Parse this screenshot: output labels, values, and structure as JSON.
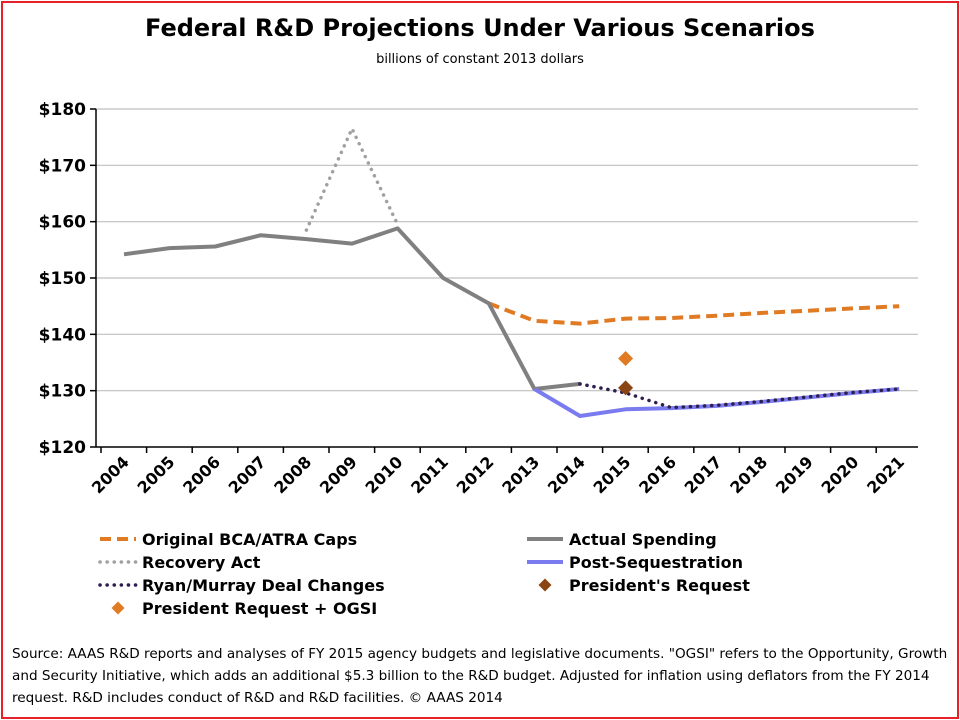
{
  "title": "Federal R&D Projections Under Various Scenarios",
  "subtitle": "billions of constant 2013 dollars",
  "source_note": "Source: AAAS R&D reports and analyses of FY 2015 agency budgets and legislative documents. \"OGSI\" refers to the Opportunity, Growth and Security Initiative, which adds an additional $5.3 billion to the R&D budget. Adjusted for inflation using deflators from the FY 2014 request. R&D includes conduct of R&D and R&D facilities. © AAAS 2014",
  "colors": {
    "frame": "#e8202a",
    "bca": "#e07b24",
    "actual": "#808080",
    "recovery": "#a0a0a0",
    "post_seq": "#7b7bf0",
    "ryan_murray": "#2e1e4e",
    "president_request": "#8b4513",
    "president_ogsi": "#e07b24"
  },
  "chart_data": {
    "type": "line",
    "categories": [
      "2004",
      "2005",
      "2006",
      "2007",
      "2008",
      "2009",
      "2010",
      "2011",
      "2012",
      "2013",
      "2014",
      "2015",
      "2016",
      "2017",
      "2018",
      "2019",
      "2020",
      "2021"
    ],
    "y_tick_labels": [
      "$120",
      "$130",
      "$140",
      "$150",
      "$160",
      "$170",
      "$180"
    ],
    "ylim": [
      120,
      180
    ],
    "grid": "horizontal",
    "legend_position": "bottom",
    "series": [
      {
        "name": "Original BCA/ATRA Caps",
        "key": "bca",
        "style": "dashed",
        "points": [
          [
            "2012",
            145.5
          ],
          [
            "2013",
            142.4
          ],
          [
            "2014",
            141.9
          ],
          [
            "2015",
            142.8
          ],
          [
            "2016",
            142.9
          ],
          [
            "2017",
            143.3
          ],
          [
            "2018",
            143.8
          ],
          [
            "2019",
            144.2
          ],
          [
            "2020",
            144.6
          ],
          [
            "2021",
            145.0
          ]
        ]
      },
      {
        "name": "Actual Spending",
        "key": "actual",
        "style": "solid",
        "points": [
          [
            "2004",
            154.2
          ],
          [
            "2005",
            155.3
          ],
          [
            "2006",
            155.6
          ],
          [
            "2007",
            157.6
          ],
          [
            "2008",
            156.9
          ],
          [
            "2009",
            156.1
          ],
          [
            "2010",
            158.8
          ],
          [
            "2011",
            150.0
          ],
          [
            "2012",
            145.5
          ],
          [
            "2013",
            130.3
          ],
          [
            "2014",
            131.2
          ]
        ]
      },
      {
        "name": "Recovery Act",
        "key": "recovery",
        "style": "dotted",
        "points": [
          [
            "2008",
            158.5
          ],
          [
            "2009",
            176.5
          ],
          [
            "2010",
            159.5
          ]
        ]
      },
      {
        "name": "Post-Sequestration",
        "key": "post_seq",
        "style": "solid",
        "points": [
          [
            "2013",
            130.3
          ],
          [
            "2014",
            125.5
          ],
          [
            "2015",
            126.7
          ],
          [
            "2016",
            126.9
          ],
          [
            "2017",
            127.3
          ],
          [
            "2018",
            128.0
          ],
          [
            "2019",
            128.8
          ],
          [
            "2020",
            129.6
          ],
          [
            "2021",
            130.3
          ]
        ]
      },
      {
        "name": "Ryan/Murray Deal Changes",
        "key": "ryan_murray",
        "style": "dotted",
        "points": [
          [
            "2014",
            131.2
          ],
          [
            "2015",
            129.6
          ],
          [
            "2016",
            127.0
          ],
          [
            "2017",
            127.4
          ],
          [
            "2018",
            128.1
          ],
          [
            "2019",
            128.9
          ],
          [
            "2020",
            129.7
          ],
          [
            "2021",
            130.3
          ]
        ]
      },
      {
        "name": "President's Request",
        "key": "president_request",
        "style": "marker",
        "points": [
          [
            "2015",
            130.5
          ]
        ]
      },
      {
        "name": "President Request + OGSI",
        "key": "president_ogsi",
        "style": "marker",
        "points": [
          [
            "2015",
            135.7
          ]
        ]
      }
    ],
    "legend": [
      {
        "label": "Original BCA/ATRA Caps",
        "key": "bca",
        "style": "dashed"
      },
      {
        "label": "Actual Spending",
        "key": "actual",
        "style": "solid"
      },
      {
        "label": "Recovery Act",
        "key": "recovery",
        "style": "dotted"
      },
      {
        "label": "Post-Sequestration",
        "key": "post_seq",
        "style": "solid"
      },
      {
        "label": "Ryan/Murray Deal Changes",
        "key": "ryan_murray",
        "style": "dotted"
      },
      {
        "label": "President's Request",
        "key": "president_request",
        "style": "marker"
      },
      {
        "label": "President Request + OGSI",
        "key": "president_ogsi",
        "style": "marker"
      }
    ]
  }
}
